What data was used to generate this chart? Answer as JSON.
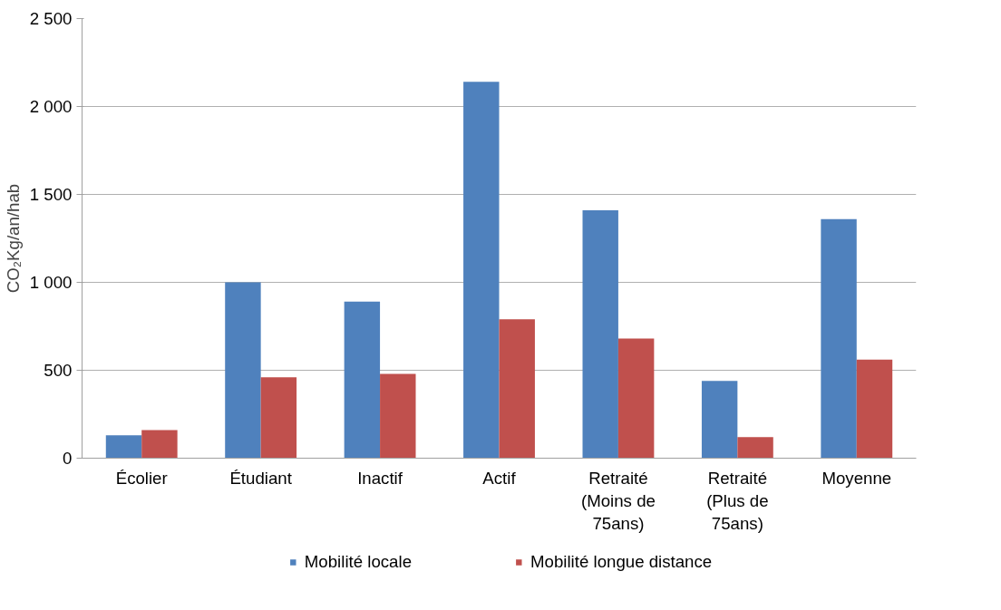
{
  "chart_data": {
    "type": "bar",
    "ylabel": "CO₂Kg/an/hab",
    "categories": [
      "Écolier",
      "Étudiant",
      "Inactif",
      "Actif",
      "Retraité\n(Moins de\n75ans)",
      "Retraité\n(Plus de\n75ans)",
      "Moyenne"
    ],
    "series": [
      {
        "name": "Mobilité locale",
        "color": "#4f81bd",
        "values": [
          130,
          1000,
          890,
          2140,
          1410,
          440,
          1360
        ]
      },
      {
        "name": "Mobilité longue distance",
        "color": "#c0504d",
        "values": [
          160,
          460,
          480,
          790,
          680,
          120,
          560
        ]
      }
    ],
    "ylim": [
      0,
      2500
    ],
    "yticks": [
      0,
      {
        "value": 500,
        "label": "500"
      },
      {
        "value": 1000,
        "label": "1 000"
      },
      {
        "value": 1500,
        "label": "1 500"
      },
      {
        "value": 2000,
        "label": "2 000"
      },
      {
        "value": 2500,
        "label": "2 500"
      }
    ],
    "grid": "y",
    "legend": "bottom"
  }
}
